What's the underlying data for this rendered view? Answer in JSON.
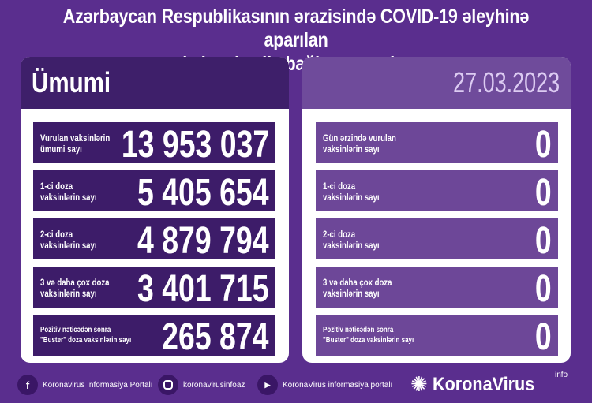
{
  "title": {
    "line1": "Azərbaycan Respublikasının ərazisində COVID-19 əleyhinə aparılan",
    "line2": "vaksinasiya ilə bağlı son vəziyyət"
  },
  "left": {
    "heading": "Ümumi",
    "rows": [
      {
        "label1": "Vurulan vaksinlərin",
        "label2": "ümumi sayı",
        "value": "13 953 037"
      },
      {
        "label1": "1-ci doza",
        "label2": "vaksinlərin sayı",
        "value": "5 405 654"
      },
      {
        "label1": "2-ci doza",
        "label2": "vaksinlərin sayı",
        "value": "4 879 794"
      },
      {
        "label1": "3 və daha çox doza",
        "label2": "vaksinlərin sayı",
        "value": "3 401 715"
      },
      {
        "label1": "Pozitiv nəticədən sonra",
        "label2": "\"Buster\" doza vaksinlərin sayı",
        "value": "265 874"
      }
    ]
  },
  "right": {
    "date": "27.03.2023",
    "rows": [
      {
        "label1": "Gün ərzində vurulan",
        "label2": "vaksinlərin sayı",
        "value": "0"
      },
      {
        "label1": "1-ci doza",
        "label2": "vaksinlərin sayı",
        "value": "0"
      },
      {
        "label1": "2-ci doza",
        "label2": "vaksinlərin sayı",
        "value": "0"
      },
      {
        "label1": "3 və daha çox doza",
        "label2": "vaksinlərin sayı",
        "value": "0"
      },
      {
        "label1": "Pozitiv nəticədən sonra",
        "label2": "\"Buster\" doza vaksinlərin sayı",
        "value": "0"
      }
    ]
  },
  "footer": {
    "facebook": "Koronavirus İnformasiya Portalı",
    "instagram": "koronavirusinfoaz",
    "youtube": "KoronaVirus informasiya portalı",
    "brand": "KoronaVirus",
    "brand_sup": "info",
    "icons": [
      "facebook-icon",
      "instagram-icon",
      "youtube-icon",
      "virus-logo-icon"
    ]
  },
  "colors": {
    "background": "#5a2e8e",
    "left_rows": "#3d1c69",
    "right_rows": "#6d4798"
  }
}
